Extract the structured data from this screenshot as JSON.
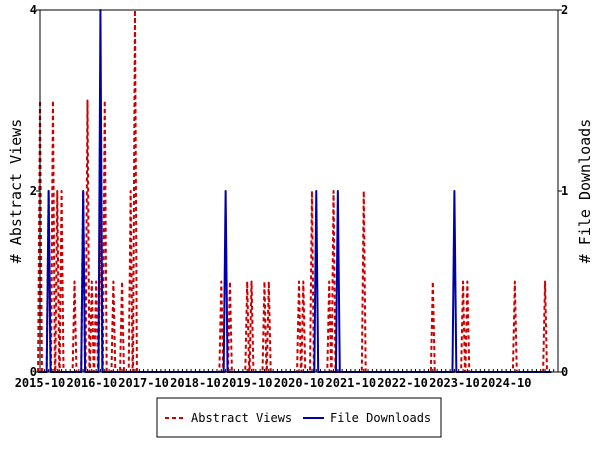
{
  "chart_data": {
    "type": "line",
    "title": "",
    "y_left": {
      "label": "# Abstract Views",
      "range": [
        0,
        4
      ],
      "ticks": [
        "0",
        "2",
        "4"
      ]
    },
    "y_right": {
      "label": "# File Downloads",
      "range": [
        0,
        2
      ],
      "ticks": [
        "0",
        "1",
        "2"
      ]
    },
    "x_axis": {
      "range": [
        "2015-10",
        "2025-10"
      ],
      "ticks": [
        "2015-10",
        "2016-10",
        "2017-10",
        "2018-10",
        "2019-10",
        "2020-10",
        "2021-10",
        "2022-10",
        "2023-10",
        "2024-10"
      ]
    },
    "grid": false,
    "legend": {
      "position": "bottom",
      "entries": [
        "Abstract Views",
        "File Downloads"
      ]
    },
    "series": [
      {
        "name": "Abstract Views",
        "axis": "left",
        "color": "#cc0000",
        "style": "dashed",
        "points": [
          [
            "2015-10",
            3
          ],
          [
            "2015-11",
            0
          ],
          [
            "2015-12",
            2
          ],
          [
            "2016-01",
            3
          ],
          [
            "2016-02",
            2
          ],
          [
            "2016-03",
            2
          ],
          [
            "2016-04",
            0
          ],
          [
            "2016-05",
            0
          ],
          [
            "2016-06",
            1
          ],
          [
            "2016-07",
            0
          ],
          [
            "2016-08",
            2
          ],
          [
            "2016-09",
            3
          ],
          [
            "2016-10",
            1
          ],
          [
            "2016-11",
            1
          ],
          [
            "2016-12",
            2
          ],
          [
            "2017-01",
            3
          ],
          [
            "2017-02",
            0
          ],
          [
            "2017-03",
            1
          ],
          [
            "2017-04",
            0
          ],
          [
            "2017-05",
            1
          ],
          [
            "2017-06",
            0
          ],
          [
            "2017-07",
            2
          ],
          [
            "2017-08",
            4
          ],
          [
            "2017-09",
            0
          ],
          [
            "2017-10",
            0
          ],
          [
            "2017-11",
            0
          ],
          [
            "2017-12",
            0
          ],
          [
            "2018-01",
            0
          ],
          [
            "2018-02",
            0
          ],
          [
            "2018-03",
            0
          ],
          [
            "2018-04",
            0
          ],
          [
            "2018-05",
            0
          ],
          [
            "2018-06",
            0
          ],
          [
            "2018-07",
            0
          ],
          [
            "2018-08",
            0
          ],
          [
            "2018-09",
            0
          ],
          [
            "2018-10",
            0
          ],
          [
            "2018-11",
            0
          ],
          [
            "2018-12",
            0
          ],
          [
            "2019-01",
            0
          ],
          [
            "2019-02",
            0
          ],
          [
            "2019-03",
            0
          ],
          [
            "2019-04",
            1
          ],
          [
            "2019-05",
            0
          ],
          [
            "2019-06",
            1
          ],
          [
            "2019-07",
            0
          ],
          [
            "2019-08",
            0
          ],
          [
            "2019-09",
            0
          ],
          [
            "2019-10",
            1
          ],
          [
            "2019-11",
            1
          ],
          [
            "2019-12",
            0
          ],
          [
            "2020-01",
            0
          ],
          [
            "2020-02",
            1
          ],
          [
            "2020-03",
            1
          ],
          [
            "2020-04",
            0
          ],
          [
            "2020-05",
            0
          ],
          [
            "2020-06",
            0
          ],
          [
            "2020-07",
            0
          ],
          [
            "2020-08",
            0
          ],
          [
            "2020-09",
            0
          ],
          [
            "2020-10",
            1
          ],
          [
            "2020-11",
            1
          ],
          [
            "2020-12",
            0
          ],
          [
            "2021-01",
            2
          ],
          [
            "2021-02",
            0
          ],
          [
            "2021-03",
            0
          ],
          [
            "2021-04",
            0
          ],
          [
            "2021-05",
            1
          ],
          [
            "2021-06",
            2
          ],
          [
            "2021-07",
            0
          ],
          [
            "2021-08",
            0
          ],
          [
            "2021-09",
            0
          ],
          [
            "2021-10",
            0
          ],
          [
            "2021-11",
            0
          ],
          [
            "2021-12",
            0
          ],
          [
            "2022-01",
            2
          ],
          [
            "2022-02",
            0
          ],
          [
            "2022-03",
            0
          ],
          [
            "2022-04",
            0
          ],
          [
            "2022-05",
            0
          ],
          [
            "2022-06",
            0
          ],
          [
            "2022-07",
            0
          ],
          [
            "2022-08",
            0
          ],
          [
            "2022-09",
            0
          ],
          [
            "2022-10",
            0
          ],
          [
            "2022-11",
            0
          ],
          [
            "2022-12",
            0
          ],
          [
            "2023-01",
            0
          ],
          [
            "2023-02",
            0
          ],
          [
            "2023-03",
            0
          ],
          [
            "2023-04",
            0
          ],
          [
            "2023-05",
            1
          ],
          [
            "2023-06",
            0
          ],
          [
            "2023-07",
            0
          ],
          [
            "2023-08",
            0
          ],
          [
            "2023-09",
            0
          ],
          [
            "2023-10",
            0
          ],
          [
            "2023-11",
            0
          ],
          [
            "2023-12",
            1
          ],
          [
            "2024-01",
            1
          ],
          [
            "2024-02",
            0
          ],
          [
            "2024-03",
            0
          ],
          [
            "2024-04",
            0
          ],
          [
            "2024-05",
            0
          ],
          [
            "2024-06",
            0
          ],
          [
            "2024-07",
            0
          ],
          [
            "2024-08",
            0
          ],
          [
            "2024-09",
            0
          ],
          [
            "2024-10",
            0
          ],
          [
            "2024-11",
            0
          ],
          [
            "2024-12",
            1
          ],
          [
            "2025-01",
            0
          ],
          [
            "2025-02",
            0
          ],
          [
            "2025-03",
            0
          ],
          [
            "2025-04",
            0
          ],
          [
            "2025-05",
            0
          ],
          [
            "2025-06",
            0
          ],
          [
            "2025-07",
            1
          ],
          [
            "2025-08",
            0
          ]
        ]
      },
      {
        "name": "File Downloads",
        "axis": "right",
        "color": "#0000aa",
        "style": "solid",
        "points": [
          [
            "2015-10",
            0
          ],
          [
            "2015-11",
            0
          ],
          [
            "2015-12",
            1
          ],
          [
            "2016-01",
            0
          ],
          [
            "2016-02",
            0
          ],
          [
            "2016-03",
            0
          ],
          [
            "2016-04",
            0
          ],
          [
            "2016-05",
            0
          ],
          [
            "2016-06",
            0
          ],
          [
            "2016-07",
            0
          ],
          [
            "2016-08",
            1
          ],
          [
            "2016-09",
            0
          ],
          [
            "2016-10",
            0
          ],
          [
            "2016-11",
            0
          ],
          [
            "2016-12",
            2
          ],
          [
            "2017-01",
            0
          ],
          [
            "2017-02",
            0
          ],
          [
            "2017-03",
            0
          ],
          [
            "2017-04",
            0
          ],
          [
            "2017-05",
            0
          ],
          [
            "2017-06",
            0
          ],
          [
            "2017-07",
            0
          ],
          [
            "2017-08",
            0
          ],
          [
            "2017-09",
            0
          ],
          [
            "2017-10",
            0
          ],
          [
            "2017-11",
            0
          ],
          [
            "2017-12",
            0
          ],
          [
            "2018-01",
            0
          ],
          [
            "2018-02",
            0
          ],
          [
            "2018-03",
            0
          ],
          [
            "2018-04",
            0
          ],
          [
            "2018-05",
            0
          ],
          [
            "2018-06",
            0
          ],
          [
            "2018-07",
            0
          ],
          [
            "2018-08",
            0
          ],
          [
            "2018-09",
            0
          ],
          [
            "2018-10",
            0
          ],
          [
            "2018-11",
            0
          ],
          [
            "2018-12",
            0
          ],
          [
            "2019-01",
            0
          ],
          [
            "2019-02",
            0
          ],
          [
            "2019-03",
            0
          ],
          [
            "2019-04",
            0
          ],
          [
            "2019-05",
            1
          ],
          [
            "2019-06",
            0
          ],
          [
            "2019-07",
            0
          ],
          [
            "2019-08",
            0
          ],
          [
            "2019-09",
            0
          ],
          [
            "2019-10",
            0
          ],
          [
            "2019-11",
            0
          ],
          [
            "2019-12",
            0
          ],
          [
            "2020-01",
            0
          ],
          [
            "2020-02",
            0
          ],
          [
            "2020-03",
            0
          ],
          [
            "2020-04",
            0
          ],
          [
            "2020-05",
            0
          ],
          [
            "2020-06",
            0
          ],
          [
            "2020-07",
            0
          ],
          [
            "2020-08",
            0
          ],
          [
            "2020-09",
            0
          ],
          [
            "2020-10",
            0
          ],
          [
            "2020-11",
            0
          ],
          [
            "2020-12",
            0
          ],
          [
            "2021-01",
            0
          ],
          [
            "2021-02",
            1
          ],
          [
            "2021-03",
            0
          ],
          [
            "2021-04",
            0
          ],
          [
            "2021-05",
            0
          ],
          [
            "2021-06",
            0
          ],
          [
            "2021-07",
            1
          ],
          [
            "2021-08",
            0
          ],
          [
            "2021-09",
            0
          ],
          [
            "2021-10",
            0
          ],
          [
            "2021-11",
            0
          ],
          [
            "2021-12",
            0
          ],
          [
            "2022-01",
            0
          ],
          [
            "2022-02",
            0
          ],
          [
            "2022-03",
            0
          ],
          [
            "2022-04",
            0
          ],
          [
            "2022-05",
            0
          ],
          [
            "2022-06",
            0
          ],
          [
            "2022-07",
            0
          ],
          [
            "2022-08",
            0
          ],
          [
            "2022-09",
            0
          ],
          [
            "2022-10",
            0
          ],
          [
            "2022-11",
            0
          ],
          [
            "2022-12",
            0
          ],
          [
            "2023-01",
            0
          ],
          [
            "2023-02",
            0
          ],
          [
            "2023-03",
            0
          ],
          [
            "2023-04",
            0
          ],
          [
            "2023-05",
            0
          ],
          [
            "2023-06",
            0
          ],
          [
            "2023-07",
            0
          ],
          [
            "2023-08",
            0
          ],
          [
            "2023-09",
            0
          ],
          [
            "2023-10",
            1
          ],
          [
            "2023-11",
            0
          ],
          [
            "2023-12",
            0
          ],
          [
            "2024-01",
            0
          ],
          [
            "2024-02",
            0
          ],
          [
            "2024-03",
            0
          ],
          [
            "2024-04",
            0
          ],
          [
            "2024-05",
            0
          ],
          [
            "2024-06",
            0
          ],
          [
            "2024-07",
            0
          ],
          [
            "2024-08",
            0
          ],
          [
            "2024-09",
            0
          ],
          [
            "2024-10",
            0
          ],
          [
            "2024-11",
            0
          ],
          [
            "2024-12",
            0
          ],
          [
            "2025-01",
            0
          ],
          [
            "2025-02",
            0
          ],
          [
            "2025-03",
            0
          ],
          [
            "2025-04",
            0
          ],
          [
            "2025-05",
            0
          ],
          [
            "2025-06",
            0
          ],
          [
            "2025-07",
            0
          ],
          [
            "2025-08",
            0
          ]
        ]
      }
    ]
  }
}
